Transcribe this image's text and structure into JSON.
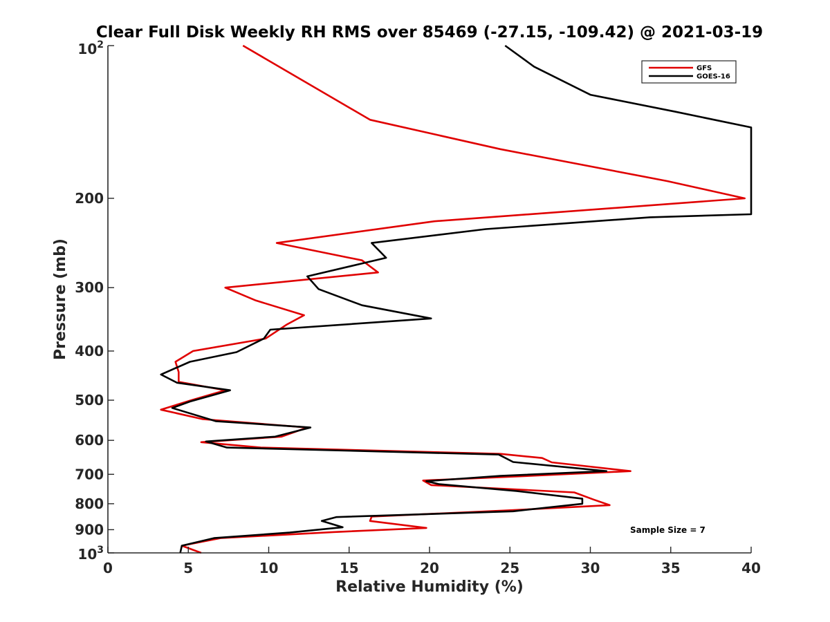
{
  "chart_data": {
    "type": "line",
    "title": "Clear Full Disk Weekly RH RMS over 85469 (-27.15, -109.42) @ 2021-03-19",
    "xlabel": "Relative Humidity (%)",
    "ylabel": "Pressure (mb)",
    "xlim": [
      0,
      40
    ],
    "ylim": [
      1000,
      100
    ],
    "y_scale": "log",
    "y_reversed": true,
    "x_ticks": [
      0,
      5,
      10,
      15,
      20,
      25,
      30,
      35,
      40
    ],
    "x_tick_labels": [
      "0",
      "5",
      "10",
      "15",
      "20",
      "25",
      "30",
      "35",
      "40"
    ],
    "y_ticks": [
      200,
      300,
      400,
      500,
      600,
      700,
      800,
      900
    ],
    "y_tick_labels": [
      "200",
      "300",
      "400",
      "500",
      "600",
      "700",
      "800",
      "900"
    ],
    "y_top_tick": {
      "base": "10",
      "exp": "2"
    },
    "y_bottom_tick": {
      "base": "10",
      "exp": "3"
    },
    "grid": false,
    "legend_position": "top-right",
    "annotation": "Sample Size = 7",
    "series": [
      {
        "name": "GFS",
        "color": "#e00000",
        "points": [
          [
            8.4,
            100
          ],
          [
            16.3,
            140
          ],
          [
            24.4,
            160
          ],
          [
            34.8,
            185
          ],
          [
            39.6,
            200
          ],
          [
            20.3,
            222
          ],
          [
            10.5,
            245
          ],
          [
            15.8,
            265
          ],
          [
            16.8,
            280
          ],
          [
            7.3,
            300
          ],
          [
            9.2,
            318
          ],
          [
            12.2,
            340
          ],
          [
            11.1,
            355
          ],
          [
            9.8,
            378
          ],
          [
            5.3,
            400
          ],
          [
            4.2,
            420
          ],
          [
            4.4,
            440
          ],
          [
            4.4,
            460
          ],
          [
            7.3,
            478
          ],
          [
            5.2,
            500
          ],
          [
            3.3,
            522
          ],
          [
            5.9,
            545
          ],
          [
            12.4,
            566
          ],
          [
            10.8,
            590
          ],
          [
            5.8,
            605
          ],
          [
            9.5,
            620
          ],
          [
            24.4,
            638
          ],
          [
            27.0,
            650
          ],
          [
            27.6,
            663
          ],
          [
            32.5,
            690
          ],
          [
            26.2,
            705
          ],
          [
            19.6,
            720
          ],
          [
            20.1,
            735
          ],
          [
            29.0,
            760
          ],
          [
            30.2,
            785
          ],
          [
            31.2,
            805
          ],
          [
            24.7,
            825
          ],
          [
            16.4,
            848
          ],
          [
            16.3,
            865
          ],
          [
            19.8,
            893
          ],
          [
            14.0,
            910
          ],
          [
            7.0,
            935
          ],
          [
            4.6,
            968
          ],
          [
            5.8,
            1000
          ]
        ]
      },
      {
        "name": "GOES-16",
        "color": "#000000",
        "points": [
          [
            24.7,
            100
          ],
          [
            26.5,
            110
          ],
          [
            30.0,
            125
          ],
          [
            35.3,
            135
          ],
          [
            40.0,
            145
          ],
          [
            40.0,
            215
          ],
          [
            33.7,
            218
          ],
          [
            23.5,
            230
          ],
          [
            16.4,
            245
          ],
          [
            17.3,
            262
          ],
          [
            12.4,
            285
          ],
          [
            13.1,
            302
          ],
          [
            15.8,
            325
          ],
          [
            20.1,
            345
          ],
          [
            10.1,
            363
          ],
          [
            9.7,
            378
          ],
          [
            8.0,
            402
          ],
          [
            5.1,
            420
          ],
          [
            3.3,
            445
          ],
          [
            4.3,
            462
          ],
          [
            7.6,
            478
          ],
          [
            5.1,
            503
          ],
          [
            4.0,
            518
          ],
          [
            6.7,
            550
          ],
          [
            12.6,
            566
          ],
          [
            10.4,
            590
          ],
          [
            6.1,
            603
          ],
          [
            7.4,
            620
          ],
          [
            24.3,
            640
          ],
          [
            25.2,
            662
          ],
          [
            31.0,
            690
          ],
          [
            24.4,
            705
          ],
          [
            19.8,
            722
          ],
          [
            20.6,
            732
          ],
          [
            25.4,
            755
          ],
          [
            29.5,
            782
          ],
          [
            29.5,
            800
          ],
          [
            25.2,
            828
          ],
          [
            14.2,
            850
          ],
          [
            13.3,
            865
          ],
          [
            14.6,
            890
          ],
          [
            11.3,
            912
          ],
          [
            6.6,
            935
          ],
          [
            4.6,
            968
          ],
          [
            4.5,
            1000
          ]
        ]
      }
    ]
  }
}
